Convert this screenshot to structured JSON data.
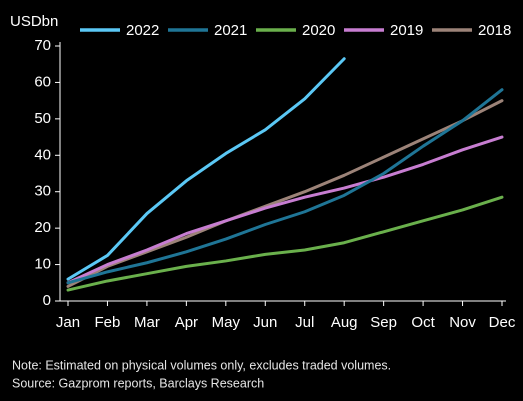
{
  "chart_data": {
    "type": "line",
    "ylabel": "USDbn",
    "categories": [
      "Jan",
      "Feb",
      "Mar",
      "Apr",
      "May",
      "Jun",
      "Jul",
      "Aug",
      "Sep",
      "Oct",
      "Nov",
      "Dec"
    ],
    "series": [
      {
        "name": "2022",
        "color": "#5bc8f5",
        "values": [
          6,
          12.5,
          24,
          33,
          40.5,
          47,
          55.5,
          66.5,
          null,
          null,
          null,
          null
        ]
      },
      {
        "name": "2021",
        "color": "#1f7596",
        "values": [
          5,
          8,
          10.5,
          13.5,
          17,
          21,
          24.5,
          29,
          35,
          42.5,
          49.5,
          58
        ]
      },
      {
        "name": "2020",
        "color": "#6ab04c",
        "values": [
          3,
          5.5,
          7.5,
          9.5,
          11,
          12.8,
          14,
          16,
          19,
          22,
          25,
          28.5
        ]
      },
      {
        "name": "2019",
        "color": "#c77dd1",
        "values": [
          5,
          10,
          14,
          18.5,
          22,
          25.5,
          28.5,
          31,
          34,
          37.5,
          41.5,
          45
        ]
      },
      {
        "name": "2018",
        "color": "#9c8378",
        "values": [
          4,
          9.5,
          13.5,
          17.5,
          22,
          26,
          30,
          34.5,
          39.5,
          44.5,
          49.5,
          55
        ]
      }
    ],
    "ylim": [
      0,
      70
    ],
    "yticks": [
      0,
      10,
      20,
      30,
      40,
      50,
      60,
      70
    ],
    "grid": false,
    "notes": [
      "Note: Estimated on physical volumes only, excludes traded volumes.",
      "Source: Gazprom reports, Barclays Research"
    ]
  }
}
